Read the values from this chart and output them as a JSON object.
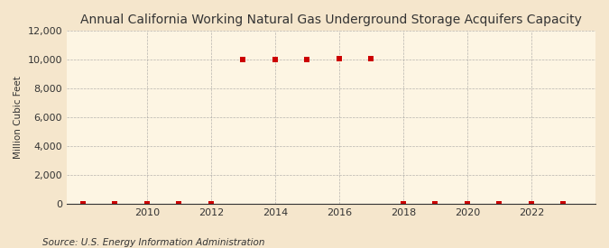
{
  "title": "Annual California Working Natural Gas Underground Storage Acquifers Capacity",
  "ylabel": "Million Cubic Feet",
  "source": "Source: U.S. Energy Information Administration",
  "background_color": "#f5e6cc",
  "plot_background_color": "#fdf5e3",
  "data_points": {
    "2008": 0,
    "2009": 0,
    "2010": 0,
    "2011": 0,
    "2012": 0,
    "2013": 9999,
    "2014": 9999,
    "2015": 9999,
    "2016": 10100,
    "2017": 10100,
    "2018": 0,
    "2019": 0,
    "2020": 0,
    "2021": 0,
    "2022": 0,
    "2023": 0
  },
  "xlim": [
    2007.5,
    2024.0
  ],
  "ylim": [
    0,
    12000
  ],
  "yticks": [
    0,
    2000,
    4000,
    6000,
    8000,
    10000,
    12000
  ],
  "xticks": [
    2010,
    2012,
    2014,
    2016,
    2018,
    2020,
    2022
  ],
  "marker_color": "#cc0000",
  "marker_size": 4,
  "grid_color": "#999999",
  "axis_color": "#333333",
  "title_fontsize": 10,
  "label_fontsize": 7.5,
  "tick_fontsize": 8,
  "source_fontsize": 7.5
}
